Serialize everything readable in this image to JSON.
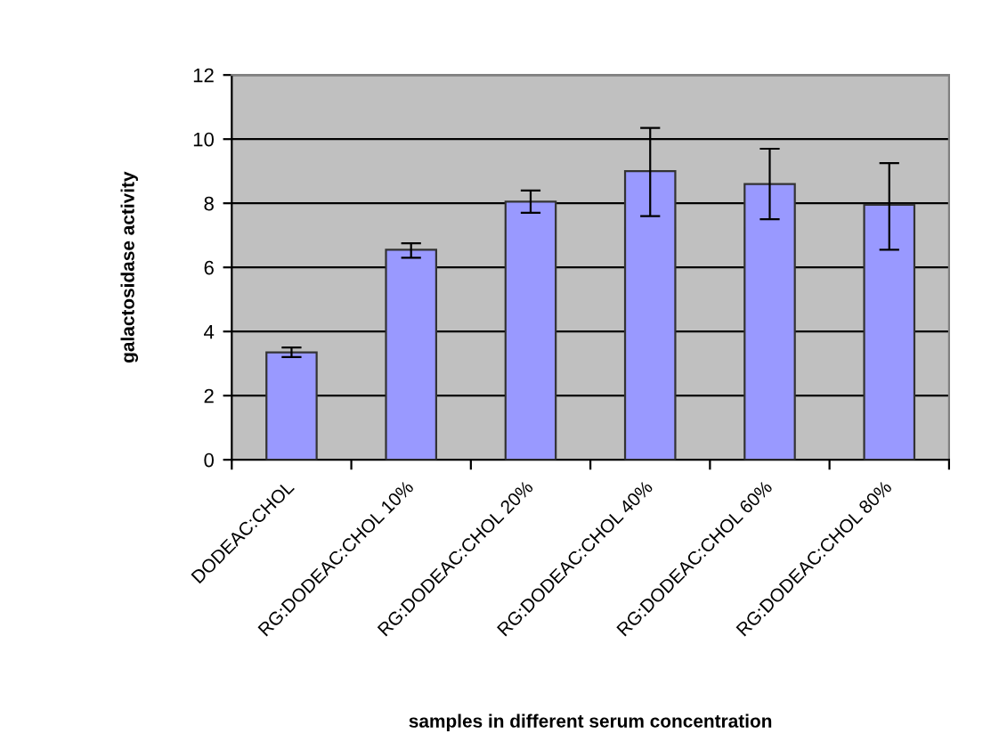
{
  "chart_data": {
    "type": "bar",
    "xlabel": "samples in different serum concentration",
    "ylabel": "galactosidase activity",
    "categories": [
      "DODEAC:CHOL",
      "RG:DODEAC:CHOL 10%",
      "RG:DODEAC:CHOL 20%",
      "RG:DODEAC:CHOL 40%",
      "RG:DODEAC:CHOL 60%",
      "RG:DODEAC:CHOL 80%"
    ],
    "values": [
      3.35,
      6.55,
      8.05,
      9.0,
      8.6,
      7.95
    ],
    "errors": [
      [
        3.2,
        3.5
      ],
      [
        6.3,
        6.75
      ],
      [
        7.7,
        8.4
      ],
      [
        7.6,
        10.35
      ],
      [
        7.5,
        9.7
      ],
      [
        6.55,
        9.25
      ]
    ],
    "color": "#9999ff",
    "ylim": [
      0,
      12
    ],
    "yticks": [
      0,
      2,
      4,
      6,
      8,
      10,
      12
    ],
    "grid": "y",
    "legend": false
  }
}
